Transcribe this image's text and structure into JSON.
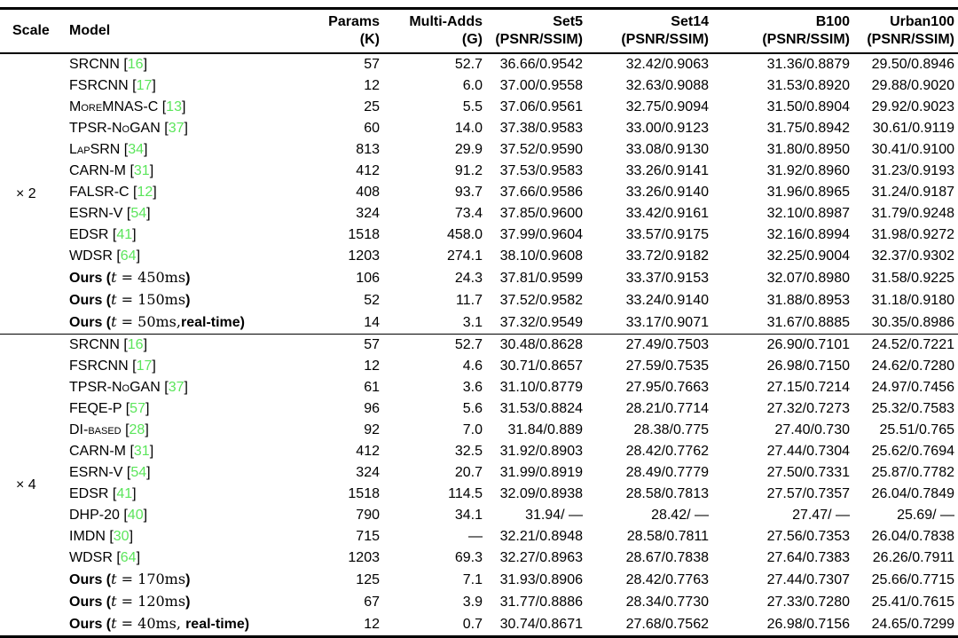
{
  "page": {
    "background": "#ffffff",
    "text_color": "#000000",
    "citation_color": "#5be55b"
  },
  "table": {
    "headers": [
      {
        "key": "scale",
        "line1": "Scale",
        "line2": "",
        "align": "left"
      },
      {
        "key": "model",
        "line1": "Model",
        "line2": "",
        "align": "left"
      },
      {
        "key": "params",
        "line1": "Params",
        "line2": "(K)",
        "align": "right"
      },
      {
        "key": "multi-adds",
        "line1": "Multi-Adds",
        "line2": "(G)",
        "align": "right"
      },
      {
        "key": "set5",
        "line1": "Set5",
        "line2": "(PSNR/SSIM)",
        "align": "right"
      },
      {
        "key": "set14",
        "line1": "Set14",
        "line2": "(PSNR/SSIM)",
        "align": "right"
      },
      {
        "key": "b100",
        "line1": "B100",
        "line2": "(PSNR/SSIM)",
        "align": "right"
      },
      {
        "key": "urban100",
        "line1": "Urban100",
        "line2": "(PSNR/SSIM)",
        "align": "right"
      }
    ],
    "value_column_names": [
      "params-value",
      "multi-adds-value",
      "set5-value",
      "set14-value",
      "b100-value",
      "urban100-value"
    ],
    "sections": [
      {
        "scale_label": "× 2",
        "rows": [
          {
            "model": [
              [
                "p",
                "SRCNN ["
              ],
              [
                "c",
                "16"
              ],
              [
                "p",
                "]"
              ]
            ],
            "values": [
              "57",
              "52.7",
              "36.66/0.9542",
              "32.42/0.9063",
              "31.36/0.8879",
              "29.50/0.8946"
            ]
          },
          {
            "model": [
              [
                "p",
                "FSRCNN ["
              ],
              [
                "c",
                "17"
              ],
              [
                "p",
                "]"
              ]
            ],
            "values": [
              "12",
              "6.0",
              "37.00/0.9558",
              "32.63/0.9088",
              "31.53/0.8920",
              "29.88/0.9020"
            ]
          },
          {
            "model": [
              [
                "sc",
                "MoreMNAS-C"
              ],
              [
                "p",
                " ["
              ],
              [
                "c",
                "13"
              ],
              [
                "p",
                "]"
              ]
            ],
            "values": [
              "25",
              "5.5",
              "37.06/0.9561",
              "32.75/0.9094",
              "31.50/0.8904",
              "29.92/0.9023"
            ]
          },
          {
            "model": [
              [
                "sc",
                "TPSR-NoGAN"
              ],
              [
                "p",
                " ["
              ],
              [
                "c",
                "37"
              ],
              [
                "p",
                "]"
              ]
            ],
            "values": [
              "60",
              "14.0",
              "37.38/0.9583",
              "33.00/0.9123",
              "31.75/0.8942",
              "30.61/0.9119"
            ]
          },
          {
            "model": [
              [
                "sc",
                "LapSRN"
              ],
              [
                "p",
                " ["
              ],
              [
                "c",
                "34"
              ],
              [
                "p",
                "]"
              ]
            ],
            "values": [
              "813",
              "29.9",
              "37.52/0.9590",
              "33.08/0.9130",
              "31.80/0.8950",
              "30.41/0.9100"
            ]
          },
          {
            "model": [
              [
                "p",
                "CARN-M ["
              ],
              [
                "c",
                "31"
              ],
              [
                "p",
                "]"
              ]
            ],
            "values": [
              "412",
              "91.2",
              "37.53/0.9583",
              "33.26/0.9141",
              "31.92/0.8960",
              "31.23/0.9193"
            ]
          },
          {
            "model": [
              [
                "p",
                "FALSR-C ["
              ],
              [
                "c",
                "12"
              ],
              [
                "p",
                "]"
              ]
            ],
            "values": [
              "408",
              "93.7",
              "37.66/0.9586",
              "33.26/0.9140",
              "31.96/0.8965",
              "31.24/0.9187"
            ]
          },
          {
            "model": [
              [
                "p",
                "ESRN-V ["
              ],
              [
                "c",
                "54"
              ],
              [
                "p",
                "]"
              ]
            ],
            "values": [
              "324",
              "73.4",
              "37.85/0.9600",
              "33.42/0.9161",
              "32.10/0.8987",
              "31.79/0.9248"
            ]
          },
          {
            "model": [
              [
                "p",
                "EDSR ["
              ],
              [
                "c",
                "41"
              ],
              [
                "p",
                "]"
              ]
            ],
            "values": [
              "1518",
              "458.0",
              "37.99/0.9604",
              "33.57/0.9175",
              "32.16/0.8994",
              "31.98/0.9272"
            ]
          },
          {
            "model": [
              [
                "p",
                "WDSR ["
              ],
              [
                "c",
                "64"
              ],
              [
                "p",
                "]"
              ]
            ],
            "values": [
              "1203",
              "274.1",
              "38.10/0.9608",
              "33.72/0.9182",
              "32.25/0.9004",
              "32.37/0.9302"
            ]
          },
          {
            "model": [
              [
                "b",
                "Ours ("
              ],
              [
                "i",
                "t"
              ],
              [
                "m",
                " = 450ms"
              ],
              [
                "b",
                ")"
              ]
            ],
            "values": [
              "106",
              "24.3",
              "37.81/0.9599",
              "33.37/0.9153",
              "32.07/0.8980",
              "31.58/0.9225"
            ]
          },
          {
            "model": [
              [
                "b",
                "Ours ("
              ],
              [
                "i",
                "t"
              ],
              [
                "m",
                " = 150ms"
              ],
              [
                "b",
                ")"
              ]
            ],
            "values": [
              "52",
              "11.7",
              "37.52/0.9582",
              "33.24/0.9140",
              "31.88/0.8953",
              "31.18/0.9180"
            ]
          },
          {
            "model": [
              [
                "b",
                "Ours ("
              ],
              [
                "i",
                "t"
              ],
              [
                "m",
                " = 50ms,"
              ],
              [
                "b",
                "real-time)"
              ]
            ],
            "values": [
              "14",
              "3.1",
              "37.32/0.9549",
              "33.17/0.9071",
              "31.67/0.8885",
              "30.35/0.8986"
            ]
          }
        ]
      },
      {
        "scale_label": "× 4",
        "rows": [
          {
            "model": [
              [
                "p",
                "SRCNN ["
              ],
              [
                "c",
                "16"
              ],
              [
                "p",
                "]"
              ]
            ],
            "values": [
              "57",
              "52.7",
              "30.48/0.8628",
              "27.49/0.7503",
              "26.90/0.7101",
              "24.52/0.7221"
            ]
          },
          {
            "model": [
              [
                "p",
                "FSRCNN ["
              ],
              [
                "c",
                "17"
              ],
              [
                "p",
                "]"
              ]
            ],
            "values": [
              "12",
              "4.6",
              "30.71/0.8657",
              "27.59/0.7535",
              "26.98/0.7150",
              "24.62/0.7280"
            ]
          },
          {
            "model": [
              [
                "sc",
                "TPSR-NoGAN"
              ],
              [
                "p",
                " ["
              ],
              [
                "c",
                "37"
              ],
              [
                "p",
                "]"
              ]
            ],
            "values": [
              "61",
              "3.6",
              "31.10/0.8779",
              "27.95/0.7663",
              "27.15/0.7214",
              "24.97/0.7456"
            ]
          },
          {
            "model": [
              [
                "p",
                "FEQE-P ["
              ],
              [
                "c",
                "57"
              ],
              [
                "p",
                "]"
              ]
            ],
            "values": [
              "96",
              "5.6",
              "31.53/0.8824",
              "28.21/0.7714",
              "27.32/0.7273",
              "25.32/0.7583"
            ]
          },
          {
            "model": [
              [
                "sc",
                "DI-based"
              ],
              [
                "p",
                " ["
              ],
              [
                "c",
                "28"
              ],
              [
                "p",
                "]"
              ]
            ],
            "values": [
              "92",
              "7.0",
              "31.84/0.889",
              "28.38/0.775",
              "27.40/0.730",
              "25.51/0.765"
            ]
          },
          {
            "model": [
              [
                "p",
                "CARN-M ["
              ],
              [
                "c",
                "31"
              ],
              [
                "p",
                "]"
              ]
            ],
            "values": [
              "412",
              "32.5",
              "31.92/0.8903",
              "28.42/0.7762",
              "27.44/0.7304",
              "25.62/0.7694"
            ]
          },
          {
            "model": [
              [
                "p",
                "ESRN-V ["
              ],
              [
                "c",
                "54"
              ],
              [
                "p",
                "]"
              ]
            ],
            "values": [
              "324",
              "20.7",
              "31.99/0.8919",
              "28.49/0.7779",
              "27.50/0.7331",
              "25.87/0.7782"
            ]
          },
          {
            "model": [
              [
                "p",
                "EDSR ["
              ],
              [
                "c",
                "41"
              ],
              [
                "p",
                "]"
              ]
            ],
            "values": [
              "1518",
              "114.5",
              "32.09/0.8938",
              "28.58/0.7813",
              "27.57/0.7357",
              "26.04/0.7849"
            ]
          },
          {
            "model": [
              [
                "p",
                "DHP-20 ["
              ],
              [
                "c",
                "40"
              ],
              [
                "p",
                "]"
              ]
            ],
            "values": [
              "790",
              "34.1",
              "31.94/ —",
              "28.42/ —",
              "27.47/ —",
              "25.69/ —"
            ]
          },
          {
            "model": [
              [
                "p",
                "IMDN ["
              ],
              [
                "c",
                "30"
              ],
              [
                "p",
                "]"
              ]
            ],
            "values": [
              "715",
              "—",
              "32.21/0.8948",
              "28.58/0.7811",
              "27.56/0.7353",
              "26.04/0.7838"
            ]
          },
          {
            "model": [
              [
                "p",
                "WDSR ["
              ],
              [
                "c",
                "64"
              ],
              [
                "p",
                "]"
              ]
            ],
            "values": [
              "1203",
              "69.3",
              "32.27/0.8963",
              "28.67/0.7838",
              "27.64/0.7383",
              "26.26/0.7911"
            ]
          },
          {
            "model": [
              [
                "b",
                "Ours ("
              ],
              [
                "i",
                "t"
              ],
              [
                "m",
                " = 170ms"
              ],
              [
                "b",
                ")"
              ]
            ],
            "values": [
              "125",
              "7.1",
              "31.93/0.8906",
              "28.42/0.7763",
              "27.44/0.7307",
              "25.66/0.7715"
            ]
          },
          {
            "model": [
              [
                "b",
                "Ours ("
              ],
              [
                "i",
                "t"
              ],
              [
                "m",
                " = 120ms"
              ],
              [
                "b",
                ")"
              ]
            ],
            "values": [
              "67",
              "3.9",
              "31.77/0.8886",
              "28.34/0.7730",
              "27.33/0.7280",
              "25.41/0.7615"
            ]
          },
          {
            "model": [
              [
                "b",
                "Ours ("
              ],
              [
                "i",
                "t"
              ],
              [
                "m",
                " = 40ms, "
              ],
              [
                "b",
                "real-time)"
              ]
            ],
            "values": [
              "12",
              "0.7",
              "30.74/0.8671",
              "27.68/0.7562",
              "26.98/0.7156",
              "24.65/0.7299"
            ]
          }
        ]
      }
    ]
  }
}
